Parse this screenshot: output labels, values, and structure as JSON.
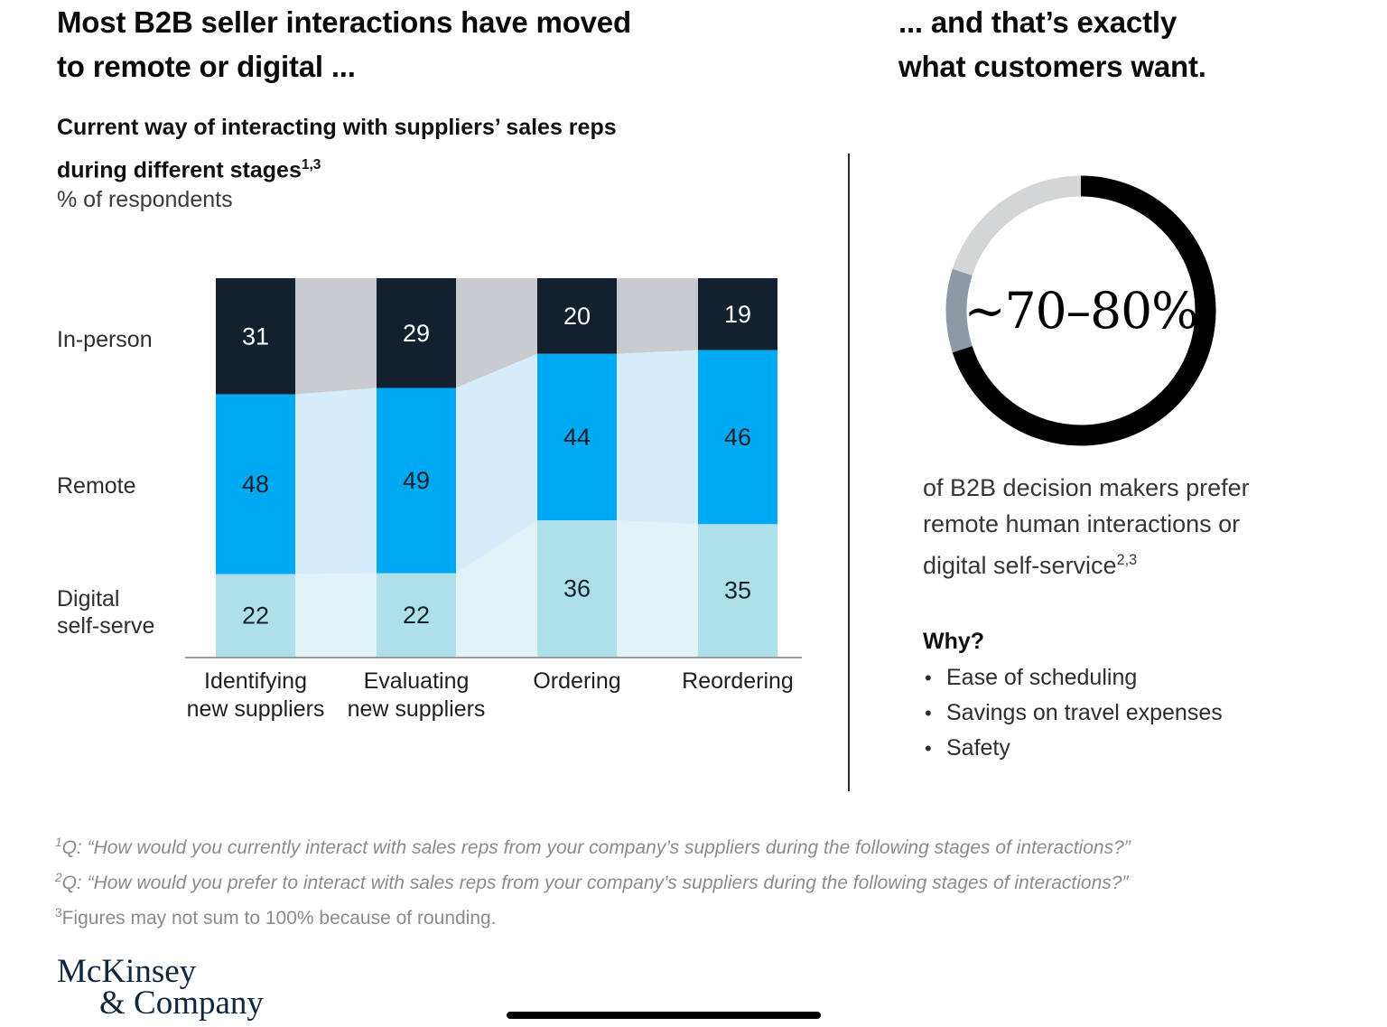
{
  "header": {
    "left_title": [
      "Most B2B seller interactions have moved",
      "to remote or digital ..."
    ],
    "right_title": [
      "... and that’s exactly",
      "what customers want."
    ]
  },
  "left_panel": {
    "subtitle_lines": [
      "Current way of interacting with suppliers’ sales reps",
      "during different stages"
    ],
    "subtitle_sup": "1,3",
    "unit_label": "% of respondents"
  },
  "chart_data": [
    {
      "id": "stacked-bars",
      "type": "bar",
      "stacked": true,
      "title": "Current way of interacting with suppliers’ sales reps during different stages",
      "unit": "% of respondents",
      "categories": [
        "Identifying new suppliers",
        "Evaluating new suppliers",
        "Ordering",
        "Reordering"
      ],
      "category_label_lines": [
        [
          "Identifying",
          "new suppliers"
        ],
        [
          "Evaluating",
          "new suppliers"
        ],
        [
          "Ordering",
          ""
        ],
        [
          "Reordering",
          ""
        ]
      ],
      "row_labels": [
        [
          "In-person",
          ""
        ],
        [
          "Remote",
          ""
        ],
        [
          "Digital",
          "self-serve"
        ]
      ],
      "series": [
        {
          "name": "In-person",
          "values": [
            31,
            29,
            20,
            19
          ],
          "color": "#13212f",
          "connector_color": "#c9cbce",
          "label_color": "#ffffff"
        },
        {
          "name": "Remote",
          "values": [
            48,
            49,
            44,
            46
          ],
          "color": "#00a9f4",
          "connector_color": "#d5ecfb",
          "label_color": "#16212b"
        },
        {
          "name": "Digital self-serve",
          "values": [
            22,
            22,
            36,
            35
          ],
          "color": "#aee0eb",
          "connector_color": "#e2f3f8",
          "label_color": "#16212b"
        }
      ],
      "legend_position": "left",
      "grid": false
    },
    {
      "id": "preference-donut",
      "type": "pie",
      "donut": true,
      "center_label": "~70–80%",
      "segments": [
        {
          "name": "prefer remote or digital (lower bound)",
          "value": 70,
          "color": "#000000"
        },
        {
          "name": "range to upper bound",
          "value": 10,
          "color": "#8d9aa6"
        },
        {
          "name": "remainder",
          "value": 20,
          "color": "#d3d5d6"
        }
      ]
    }
  ],
  "right_panel": {
    "caption_lines": [
      "of B2B decision makers prefer",
      "remote human interactions or",
      "digital self-service"
    ],
    "caption_sup": "2,3",
    "why_heading": "Why?",
    "why_bullets": [
      "Ease of scheduling",
      "Savings on travel expenses",
      "Safety"
    ]
  },
  "footnotes": [
    {
      "sup": "1",
      "text": "Q: “How would you currently interact with sales reps from your company’s suppliers during the following stages of interactions?”"
    },
    {
      "sup": "2",
      "text": "Q: “How would you prefer to interact with sales reps from your company’s suppliers during the following stages of interactions?”"
    },
    {
      "sup": "3",
      "text": "Figures may not sum to 100% because of rounding."
    }
  ],
  "footer": {
    "logo_lines": [
      "McKinsey",
      "& Company"
    ]
  }
}
